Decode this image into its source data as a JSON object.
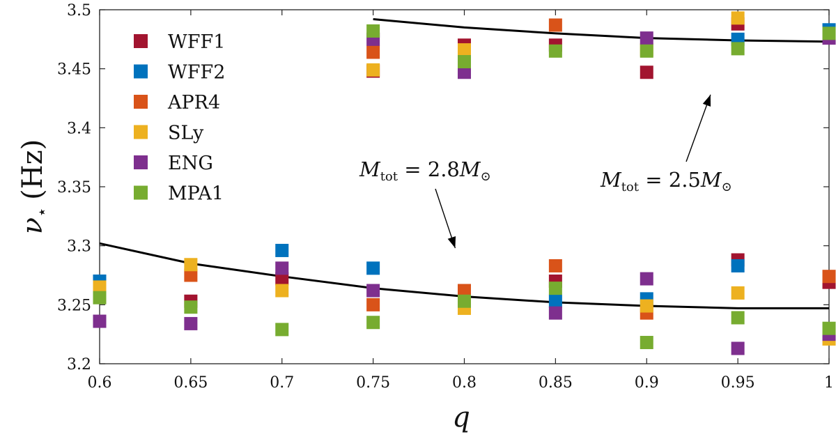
{
  "chart_data": {
    "type": "scatter",
    "xlabel": "q",
    "ylabel": {
      "symbol": "ν",
      "subscript": "⋆",
      "unit": "(Hz)"
    },
    "xlim": [
      0.6,
      1.0
    ],
    "ylim": [
      3.2,
      3.5
    ],
    "xticks": [
      "0.6",
      "0.65",
      "0.7",
      "0.75",
      "0.8",
      "0.85",
      "0.9",
      "0.95",
      "1"
    ],
    "yticks": [
      "3.2",
      "3.25",
      "3.3",
      "3.35",
      "3.4",
      "3.45",
      "3.5"
    ],
    "legend_position": "top-left",
    "series": [
      {
        "name": "WFF1",
        "color": "#A2142F",
        "points": [
          [
            0.6,
            3.262
          ],
          [
            0.65,
            3.253
          ],
          [
            0.7,
            3.272
          ],
          [
            0.75,
            3.448
          ],
          [
            0.8,
            3.47
          ],
          [
            0.8,
            3.262
          ],
          [
            0.85,
            3.47
          ],
          [
            0.85,
            3.27
          ],
          [
            0.9,
            3.447
          ],
          [
            0.95,
            3.488
          ],
          [
            0.95,
            3.288
          ],
          [
            1.0,
            3.269
          ]
        ]
      },
      {
        "name": "WFF2",
        "color": "#0072BD",
        "points": [
          [
            0.6,
            3.27
          ],
          [
            0.7,
            3.296
          ],
          [
            0.75,
            3.281
          ],
          [
            0.85,
            3.253
          ],
          [
            0.9,
            3.255
          ],
          [
            0.95,
            3.475
          ],
          [
            0.95,
            3.283
          ],
          [
            1.0,
            3.483
          ]
        ]
      },
      {
        "name": "APR4",
        "color": "#D95319",
        "points": [
          [
            0.65,
            3.275
          ],
          [
            0.75,
            3.464
          ],
          [
            0.75,
            3.25
          ],
          [
            0.8,
            3.262
          ],
          [
            0.85,
            3.487
          ],
          [
            0.85,
            3.283
          ],
          [
            0.9,
            3.243
          ],
          [
            1.0,
            3.274
          ]
        ]
      },
      {
        "name": "SLy",
        "color": "#EDB120",
        "points": [
          [
            0.6,
            3.265
          ],
          [
            0.65,
            3.284
          ],
          [
            0.7,
            3.262
          ],
          [
            0.75,
            3.449
          ],
          [
            0.8,
            3.466
          ],
          [
            0.8,
            3.247
          ],
          [
            0.9,
            3.466
          ],
          [
            0.9,
            3.249
          ],
          [
            0.95,
            3.493
          ],
          [
            0.95,
            3.26
          ],
          [
            1.0,
            3.221
          ]
        ]
      },
      {
        "name": "ENG",
        "color": "#7E2F8E",
        "points": [
          [
            0.6,
            3.236
          ],
          [
            0.65,
            3.234
          ],
          [
            0.7,
            3.281
          ],
          [
            0.75,
            3.475
          ],
          [
            0.75,
            3.262
          ],
          [
            0.8,
            3.447
          ],
          [
            0.85,
            3.243
          ],
          [
            0.9,
            3.476
          ],
          [
            0.9,
            3.272
          ],
          [
            0.95,
            3.213
          ],
          [
            1.0,
            3.476
          ],
          [
            1.0,
            3.225
          ]
        ]
      },
      {
        "name": "MPA1",
        "color": "#77AC30",
        "points": [
          [
            0.6,
            3.256
          ],
          [
            0.65,
            3.248
          ],
          [
            0.7,
            3.229
          ],
          [
            0.75,
            3.482
          ],
          [
            0.75,
            3.235
          ],
          [
            0.8,
            3.456
          ],
          [
            0.8,
            3.253
          ],
          [
            0.85,
            3.465
          ],
          [
            0.85,
            3.264
          ],
          [
            0.9,
            3.465
          ],
          [
            0.9,
            3.218
          ],
          [
            0.95,
            3.467
          ],
          [
            0.95,
            3.239
          ],
          [
            1.0,
            3.48
          ],
          [
            1.0,
            3.23
          ]
        ]
      }
    ],
    "curves": [
      {
        "name": "M_tot = 2.5 M_sun",
        "color": "#000000",
        "x": [
          0.75,
          0.8,
          0.85,
          0.9,
          0.95,
          1.0
        ],
        "y": [
          3.492,
          3.485,
          3.48,
          3.476,
          3.474,
          3.473
        ]
      },
      {
        "name": "M_tot = 2.8 M_sun",
        "color": "#000000",
        "x": [
          0.6,
          0.65,
          0.7,
          0.75,
          0.8,
          0.85,
          0.9,
          0.95,
          1.0
        ],
        "y": [
          3.302,
          3.285,
          3.274,
          3.264,
          3.257,
          3.252,
          3.249,
          3.247,
          3.247
        ]
      }
    ],
    "annotations": [
      {
        "prefix": "M",
        "sub": "tot",
        "mid": " = 2.8",
        "m": "M",
        "msub": "⊙",
        "target": [
          0.795,
          3.298
        ]
      },
      {
        "prefix": "M",
        "sub": "tot",
        "mid": " = 2.5",
        "m": "M",
        "msub": "⊙",
        "target": [
          0.935,
          3.428
        ]
      }
    ]
  }
}
